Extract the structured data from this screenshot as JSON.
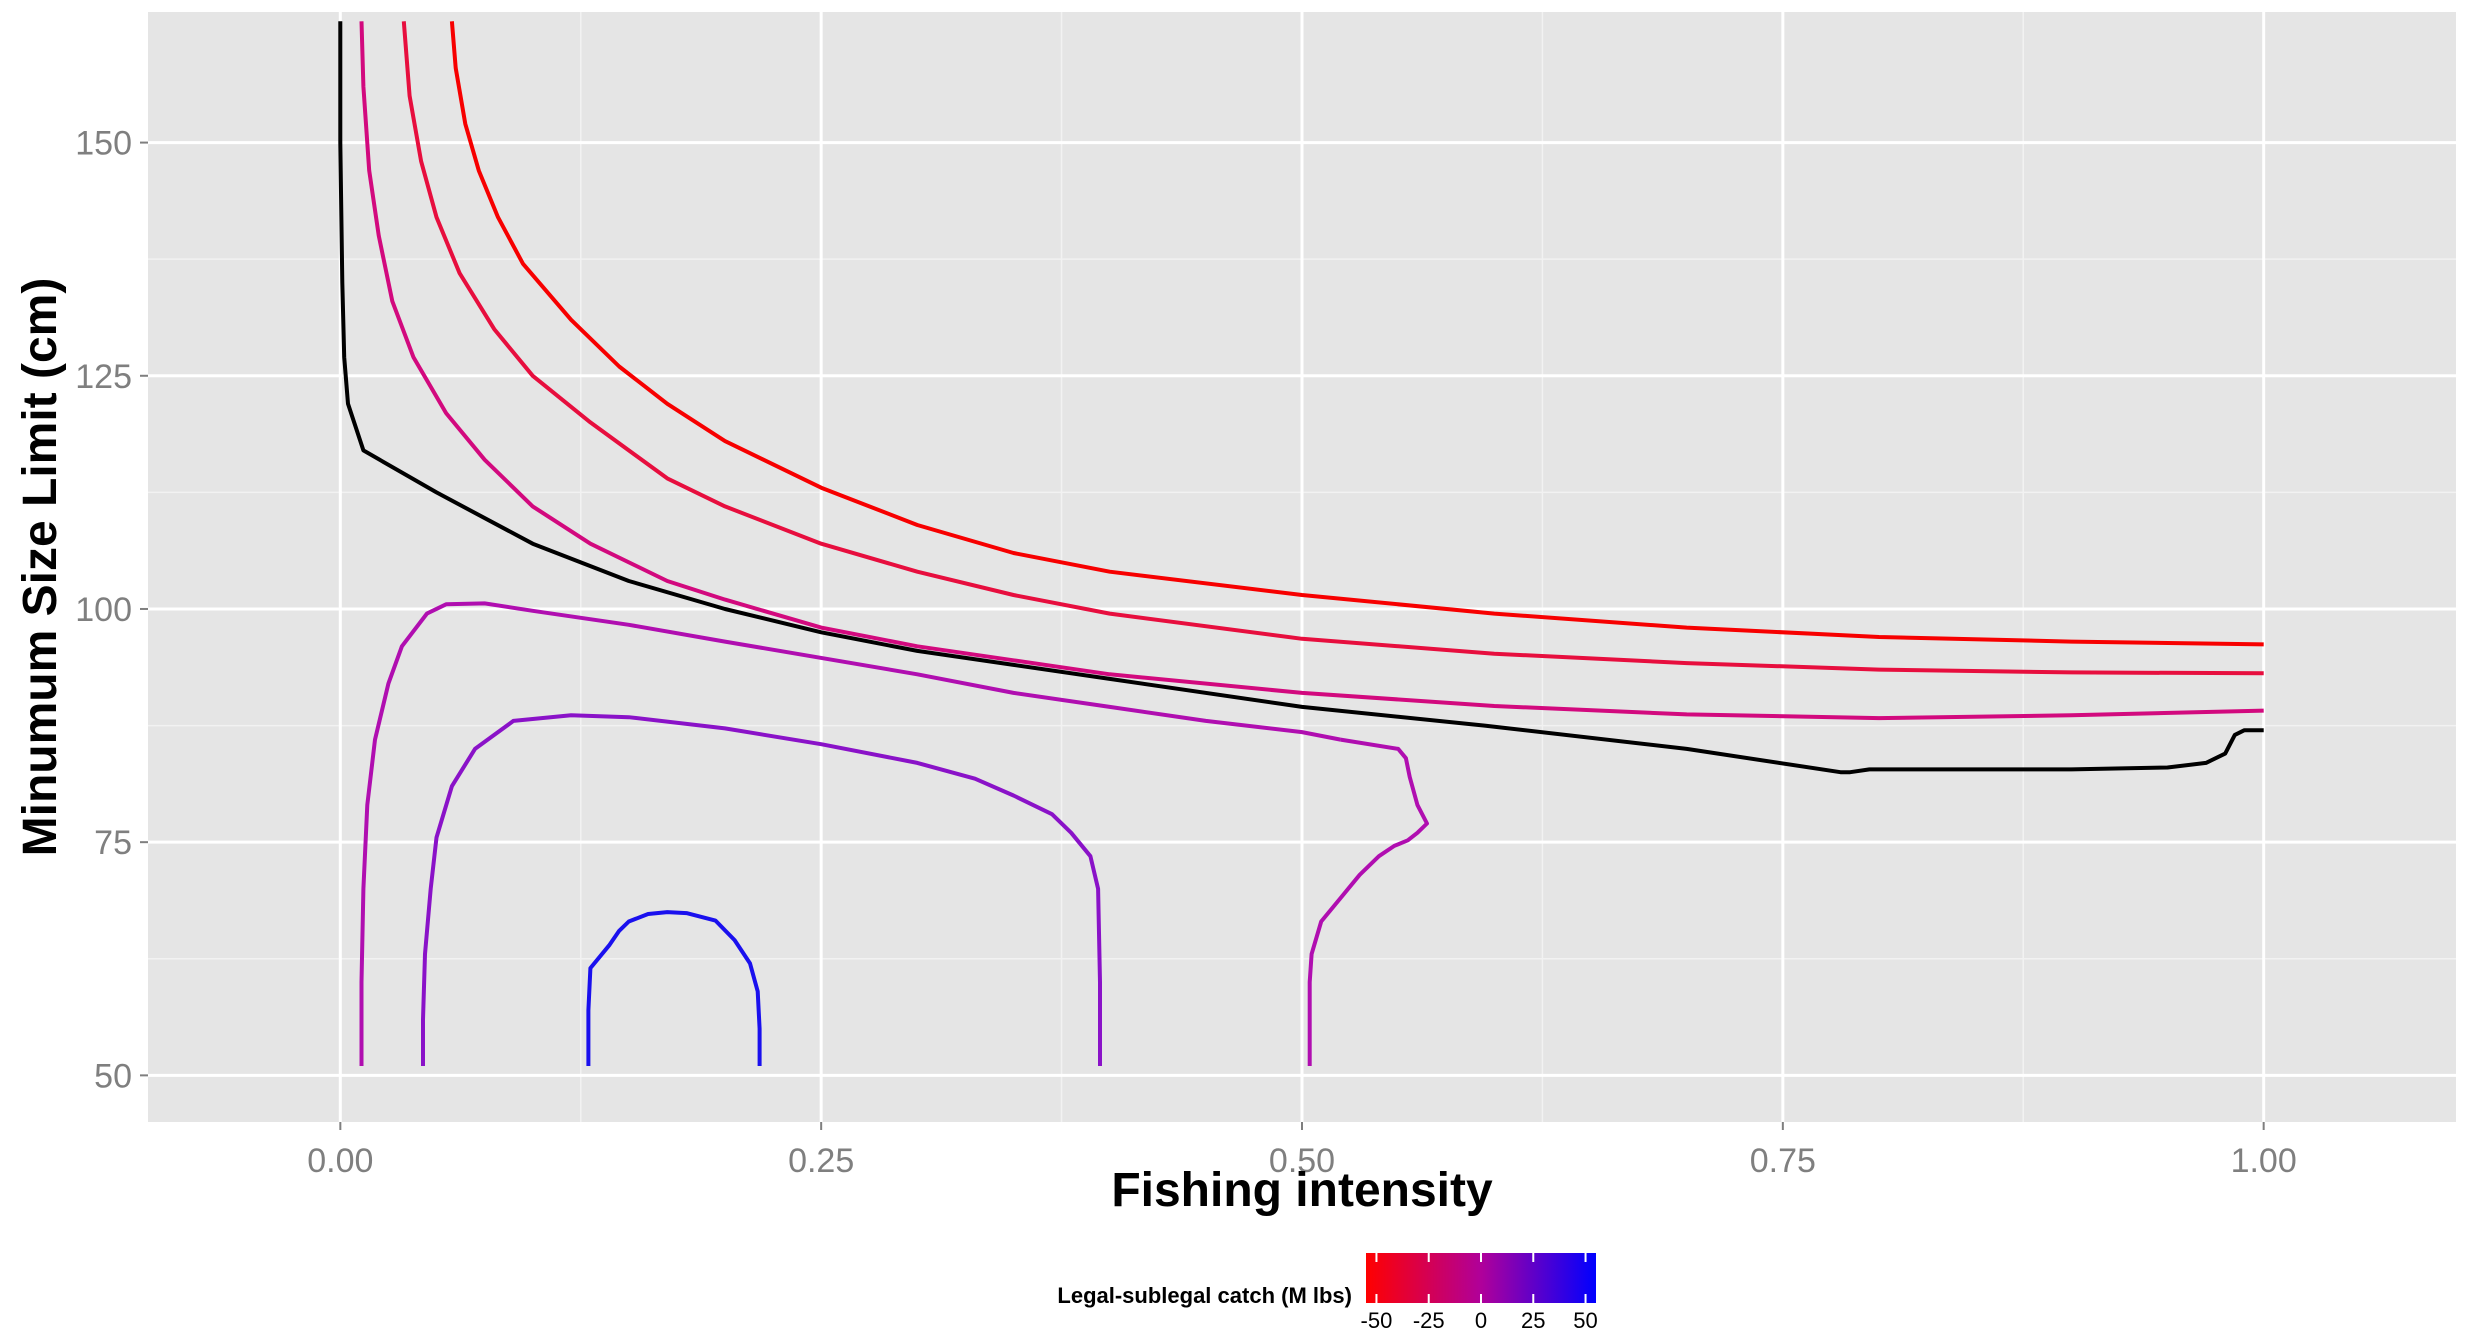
{
  "chart_data": {
    "type": "line",
    "xlabel": "Fishing intensity",
    "ylabel": "Minumum Size Limit (cm)",
    "xlim": [
      -0.1,
      1.1
    ],
    "ylim": [
      45,
      164
    ],
    "x_ticks": [
      0,
      0.25,
      0.5,
      0.75,
      1
    ],
    "x_tick_labels": [
      "0.00",
      "0.25",
      "0.50",
      "0.75",
      "1.00"
    ],
    "y_ticks": [
      50,
      75,
      100,
      125,
      150
    ],
    "y_tick_labels": [
      "50",
      "75",
      "100",
      "125",
      "150"
    ],
    "grid": true,
    "legend": {
      "title": "Legal-sublegal catch (M lbs)",
      "position": "bottom",
      "ticks": [
        -50,
        -25,
        0,
        25,
        50
      ],
      "tick_labels": [
        "-50",
        "-25",
        "0",
        "25",
        "50"
      ],
      "range": [
        -55,
        55
      ],
      "low_color": "#ff0000",
      "high_color": "#0000ff"
    },
    "series": [
      {
        "level": -50,
        "color": "#f70000",
        "points": [
          [
            0.058,
            163
          ],
          [
            0.06,
            158
          ],
          [
            0.065,
            152
          ],
          [
            0.072,
            147
          ],
          [
            0.082,
            142
          ],
          [
            0.095,
            137
          ],
          [
            0.12,
            131
          ],
          [
            0.145,
            126
          ],
          [
            0.17,
            122
          ],
          [
            0.2,
            118
          ],
          [
            0.25,
            113
          ],
          [
            0.3,
            109
          ],
          [
            0.35,
            106
          ],
          [
            0.4,
            104
          ],
          [
            0.5,
            101.5
          ],
          [
            0.6,
            99.5
          ],
          [
            0.7,
            98
          ],
          [
            0.8,
            97
          ],
          [
            0.9,
            96.5
          ],
          [
            1.0,
            96.2
          ]
        ]
      },
      {
        "level": -40,
        "color": "#e70e3e",
        "points": [
          [
            0.033,
            163
          ],
          [
            0.036,
            155
          ],
          [
            0.042,
            148
          ],
          [
            0.05,
            142
          ],
          [
            0.062,
            136
          ],
          [
            0.08,
            130
          ],
          [
            0.1,
            125
          ],
          [
            0.13,
            120
          ],
          [
            0.17,
            114
          ],
          [
            0.2,
            111
          ],
          [
            0.25,
            107
          ],
          [
            0.3,
            104
          ],
          [
            0.35,
            101.5
          ],
          [
            0.4,
            99.5
          ],
          [
            0.5,
            96.8
          ],
          [
            0.6,
            95.2
          ],
          [
            0.7,
            94.2
          ],
          [
            0.8,
            93.5
          ],
          [
            0.9,
            93.2
          ],
          [
            1.0,
            93.1
          ]
        ]
      },
      {
        "level": -25,
        "color": "#d2097e",
        "points": [
          [
            0.011,
            163
          ],
          [
            0.012,
            156
          ],
          [
            0.015,
            147
          ],
          [
            0.02,
            140
          ],
          [
            0.027,
            133
          ],
          [
            0.038,
            127
          ],
          [
            0.055,
            121
          ],
          [
            0.075,
            116
          ],
          [
            0.1,
            111
          ],
          [
            0.13,
            107
          ],
          [
            0.17,
            103
          ],
          [
            0.2,
            101
          ],
          [
            0.25,
            98
          ],
          [
            0.3,
            96
          ],
          [
            0.35,
            94.5
          ],
          [
            0.4,
            93
          ],
          [
            0.5,
            91
          ],
          [
            0.6,
            89.6
          ],
          [
            0.7,
            88.7
          ],
          [
            0.8,
            88.3
          ],
          [
            0.9,
            88.6
          ],
          [
            1.0,
            89.1
          ]
        ]
      },
      {
        "level": 0,
        "color": "#000000",
        "points": [
          [
            0.0,
            163
          ],
          [
            0.0,
            150
          ],
          [
            0.001,
            135
          ],
          [
            0.002,
            127
          ],
          [
            0.004,
            122
          ],
          [
            0.012,
            117
          ],
          [
            0.05,
            112.5
          ],
          [
            0.1,
            107
          ],
          [
            0.15,
            103
          ],
          [
            0.2,
            100
          ],
          [
            0.25,
            97.5
          ],
          [
            0.3,
            95.5
          ],
          [
            0.35,
            94
          ],
          [
            0.4,
            92.5
          ],
          [
            0.5,
            89.5
          ],
          [
            0.595,
            87.5
          ],
          [
            0.7,
            85
          ],
          [
            0.78,
            82.5
          ],
          [
            0.785,
            82.5
          ],
          [
            0.795,
            82.8
          ],
          [
            0.82,
            82.8
          ],
          [
            0.9,
            82.8
          ],
          [
            0.95,
            83
          ],
          [
            0.97,
            83.5
          ],
          [
            0.98,
            84.5
          ],
          [
            0.985,
            86.5
          ],
          [
            0.99,
            87
          ],
          [
            1.0,
            87
          ]
        ]
      },
      {
        "level": 12,
        "color": "#b00eb0",
        "points": [
          [
            0.011,
            51
          ],
          [
            0.011,
            60
          ],
          [
            0.012,
            70
          ],
          [
            0.014,
            79
          ],
          [
            0.018,
            86
          ],
          [
            0.025,
            92
          ],
          [
            0.032,
            96
          ],
          [
            0.05,
            100.2
          ],
          [
            0.06,
            100.8
          ],
          [
            0.075,
            100.8
          ],
          [
            0.1,
            100
          ],
          [
            0.15,
            98.5
          ],
          [
            0.2,
            97
          ],
          [
            0.3,
            94
          ],
          [
            0.4,
            91.5
          ],
          [
            0.5,
            89.2
          ],
          [
            0.55,
            88
          ],
          [
            0.6,
            87
          ],
          [
            0.7,
            85.5
          ],
          [
            0.8,
            84.5
          ],
          [
            0.9,
            84
          ]
        ],
        "segments": [
          [
            [
              0.011,
              51
            ],
            [
              0.011,
              60
            ],
            [
              0.012,
              70
            ],
            [
              0.014,
              79
            ],
            [
              0.018,
              86
            ],
            [
              0.025,
              92
            ],
            [
              0.032,
              96
            ],
            [
              0.045,
              99.5
            ],
            [
              0.055,
              100.5
            ],
            [
              0.075,
              100.6
            ],
            [
              0.1,
              99.8
            ],
            [
              0.15,
              98.3
            ],
            [
              0.2,
              96.5
            ],
            [
              0.3,
              93
            ],
            [
              0.35,
              91
            ],
            [
              0.4,
              89.5
            ],
            [
              0.45,
              88
            ],
            [
              0.5,
              86.8
            ],
            [
              0.52,
              86
            ]
          ],
          [
            [
              0.52,
              86
            ],
            [
              0.55,
              85
            ],
            [
              0.554,
              84
            ],
            [
              0.556,
              82
            ],
            [
              0.56,
              79
            ],
            [
              0.565,
              77
            ],
            [
              0.56,
              76
            ],
            [
              0.555,
              75.2
            ],
            [
              0.548,
              74.6
            ],
            [
              0.54,
              73.5
            ],
            [
              0.53,
              71.5
            ],
            [
              0.52,
              69
            ],
            [
              0.51,
              66.5
            ],
            [
              0.505,
              63
            ],
            [
              0.504,
              60
            ],
            [
              0.504,
              55
            ],
            [
              0.504,
              51
            ]
          ]
        ]
      },
      {
        "level": 25,
        "color": "#8a12c8",
        "points": [
          [
            0.043,
            51
          ],
          [
            0.043,
            56
          ],
          [
            0.044,
            63
          ],
          [
            0.047,
            70
          ],
          [
            0.05,
            75.5
          ],
          [
            0.058,
            81
          ],
          [
            0.07,
            85
          ],
          [
            0.09,
            88
          ],
          [
            0.12,
            88.6
          ],
          [
            0.15,
            88.4
          ],
          [
            0.2,
            87.2
          ],
          [
            0.25,
            85.5
          ],
          [
            0.3,
            83.5
          ],
          [
            0.33,
            81.8
          ],
          [
            0.35,
            80
          ],
          [
            0.37,
            78
          ],
          [
            0.38,
            76
          ],
          [
            0.39,
            73.5
          ],
          [
            0.394,
            70
          ],
          [
            0.395,
            60
          ],
          [
            0.395,
            51
          ]
        ]
      },
      {
        "level": 50,
        "color": "#1a10ee",
        "points": [
          [
            0.129,
            51
          ],
          [
            0.129,
            57
          ],
          [
            0.13,
            61.5
          ],
          [
            0.14,
            64
          ],
          [
            0.145,
            65.5
          ],
          [
            0.15,
            66.5
          ],
          [
            0.16,
            67.3
          ],
          [
            0.17,
            67.5
          ],
          [
            0.18,
            67.4
          ],
          [
            0.195,
            66.6
          ],
          [
            0.205,
            64.5
          ],
          [
            0.213,
            62
          ],
          [
            0.217,
            59
          ],
          [
            0.218,
            55
          ],
          [
            0.218,
            51
          ]
        ]
      }
    ]
  }
}
